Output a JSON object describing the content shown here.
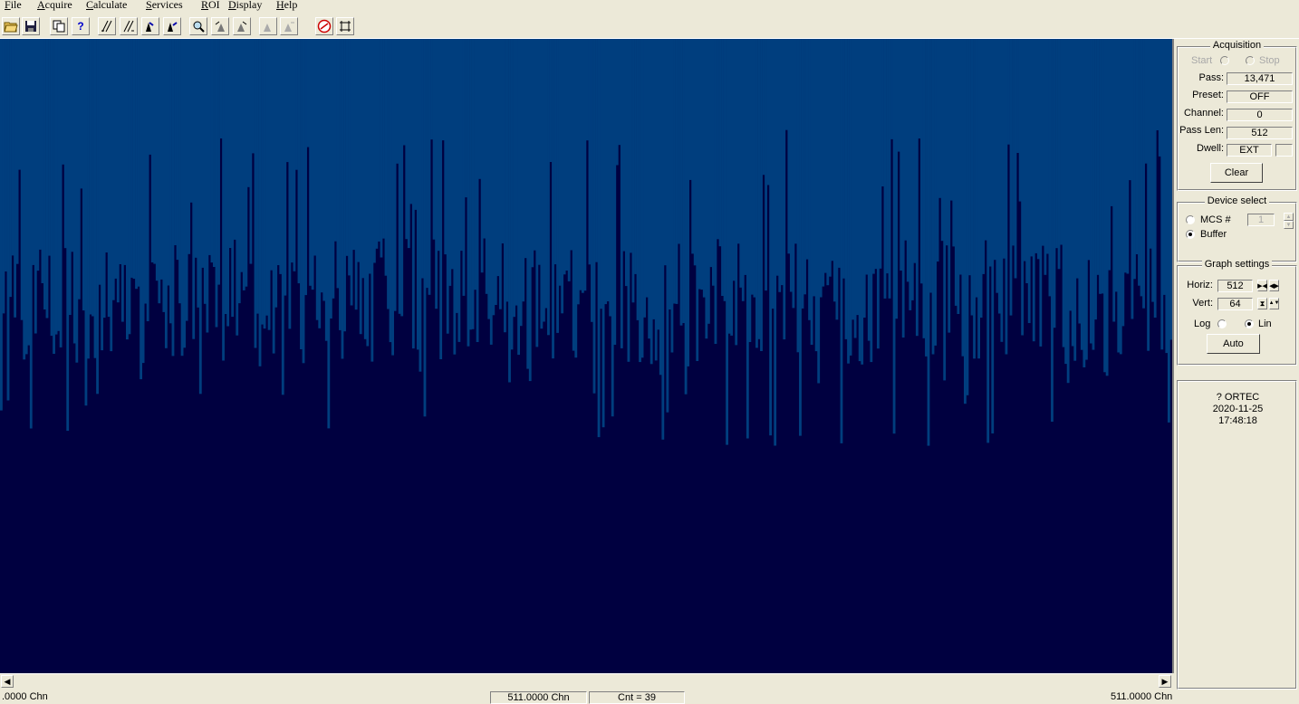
{
  "menu": [
    "File",
    "Acquire",
    "Calculate",
    "Services",
    "ROI",
    "Display",
    "Help"
  ],
  "menu_mnemonics": [
    "F",
    "A",
    "C",
    "S",
    "R",
    "D",
    "H"
  ],
  "toolbar_icons": [
    "open-folder-icon",
    "save-disk-icon",
    "copy-icon",
    "help-icon",
    "marker-left-icon",
    "marker-right-icon",
    "peak-left-icon",
    "peak-right-icon",
    "zoom-icon",
    "roi-prev-icon",
    "roi-next-icon",
    "roi-mark-icon",
    "roi-clear-icon",
    "ortec-logo-icon",
    "fullscreen-icon"
  ],
  "spectrum": {
    "background_color": "#000040",
    "bar_color": "#003E7E",
    "channels": 512,
    "vertical_scale": 64,
    "scale": "Lin"
  },
  "status": {
    "left_marker": ".0000 Chn",
    "cursor_channel": "511.0000 Chn",
    "count": "Cnt = 39",
    "right_marker": "511.0000 Chn"
  },
  "acquisition": {
    "title": "Acquisition",
    "start_label": "Start",
    "stop_label": "Stop",
    "pass_label": "Pass:",
    "pass_value": "13,471",
    "preset_label": "Preset:",
    "preset_value": "OFF",
    "channel_label": "Channel:",
    "channel_value": "0",
    "passlen_label": "Pass Len:",
    "passlen_value": "512",
    "dwell_label": "Dwell:",
    "dwell_value": "EXT",
    "dwell_extra": "",
    "clear_label": "Clear"
  },
  "device_select": {
    "title": "Device select",
    "mcs_label": "MCS #",
    "mcs_value": "1",
    "buffer_label": "Buffer",
    "selected": "Buffer"
  },
  "graph_settings": {
    "title": "Graph settings",
    "horiz_label": "Horiz:",
    "horiz_value": "512",
    "vert_label": "Vert:",
    "vert_value": "64",
    "log_label": "Log",
    "lin_label": "Lin",
    "selected": "Lin",
    "auto_label": "Auto"
  },
  "info": {
    "vendor": "? ORTEC",
    "date": "2020-11-25",
    "time": "17:48:18"
  }
}
